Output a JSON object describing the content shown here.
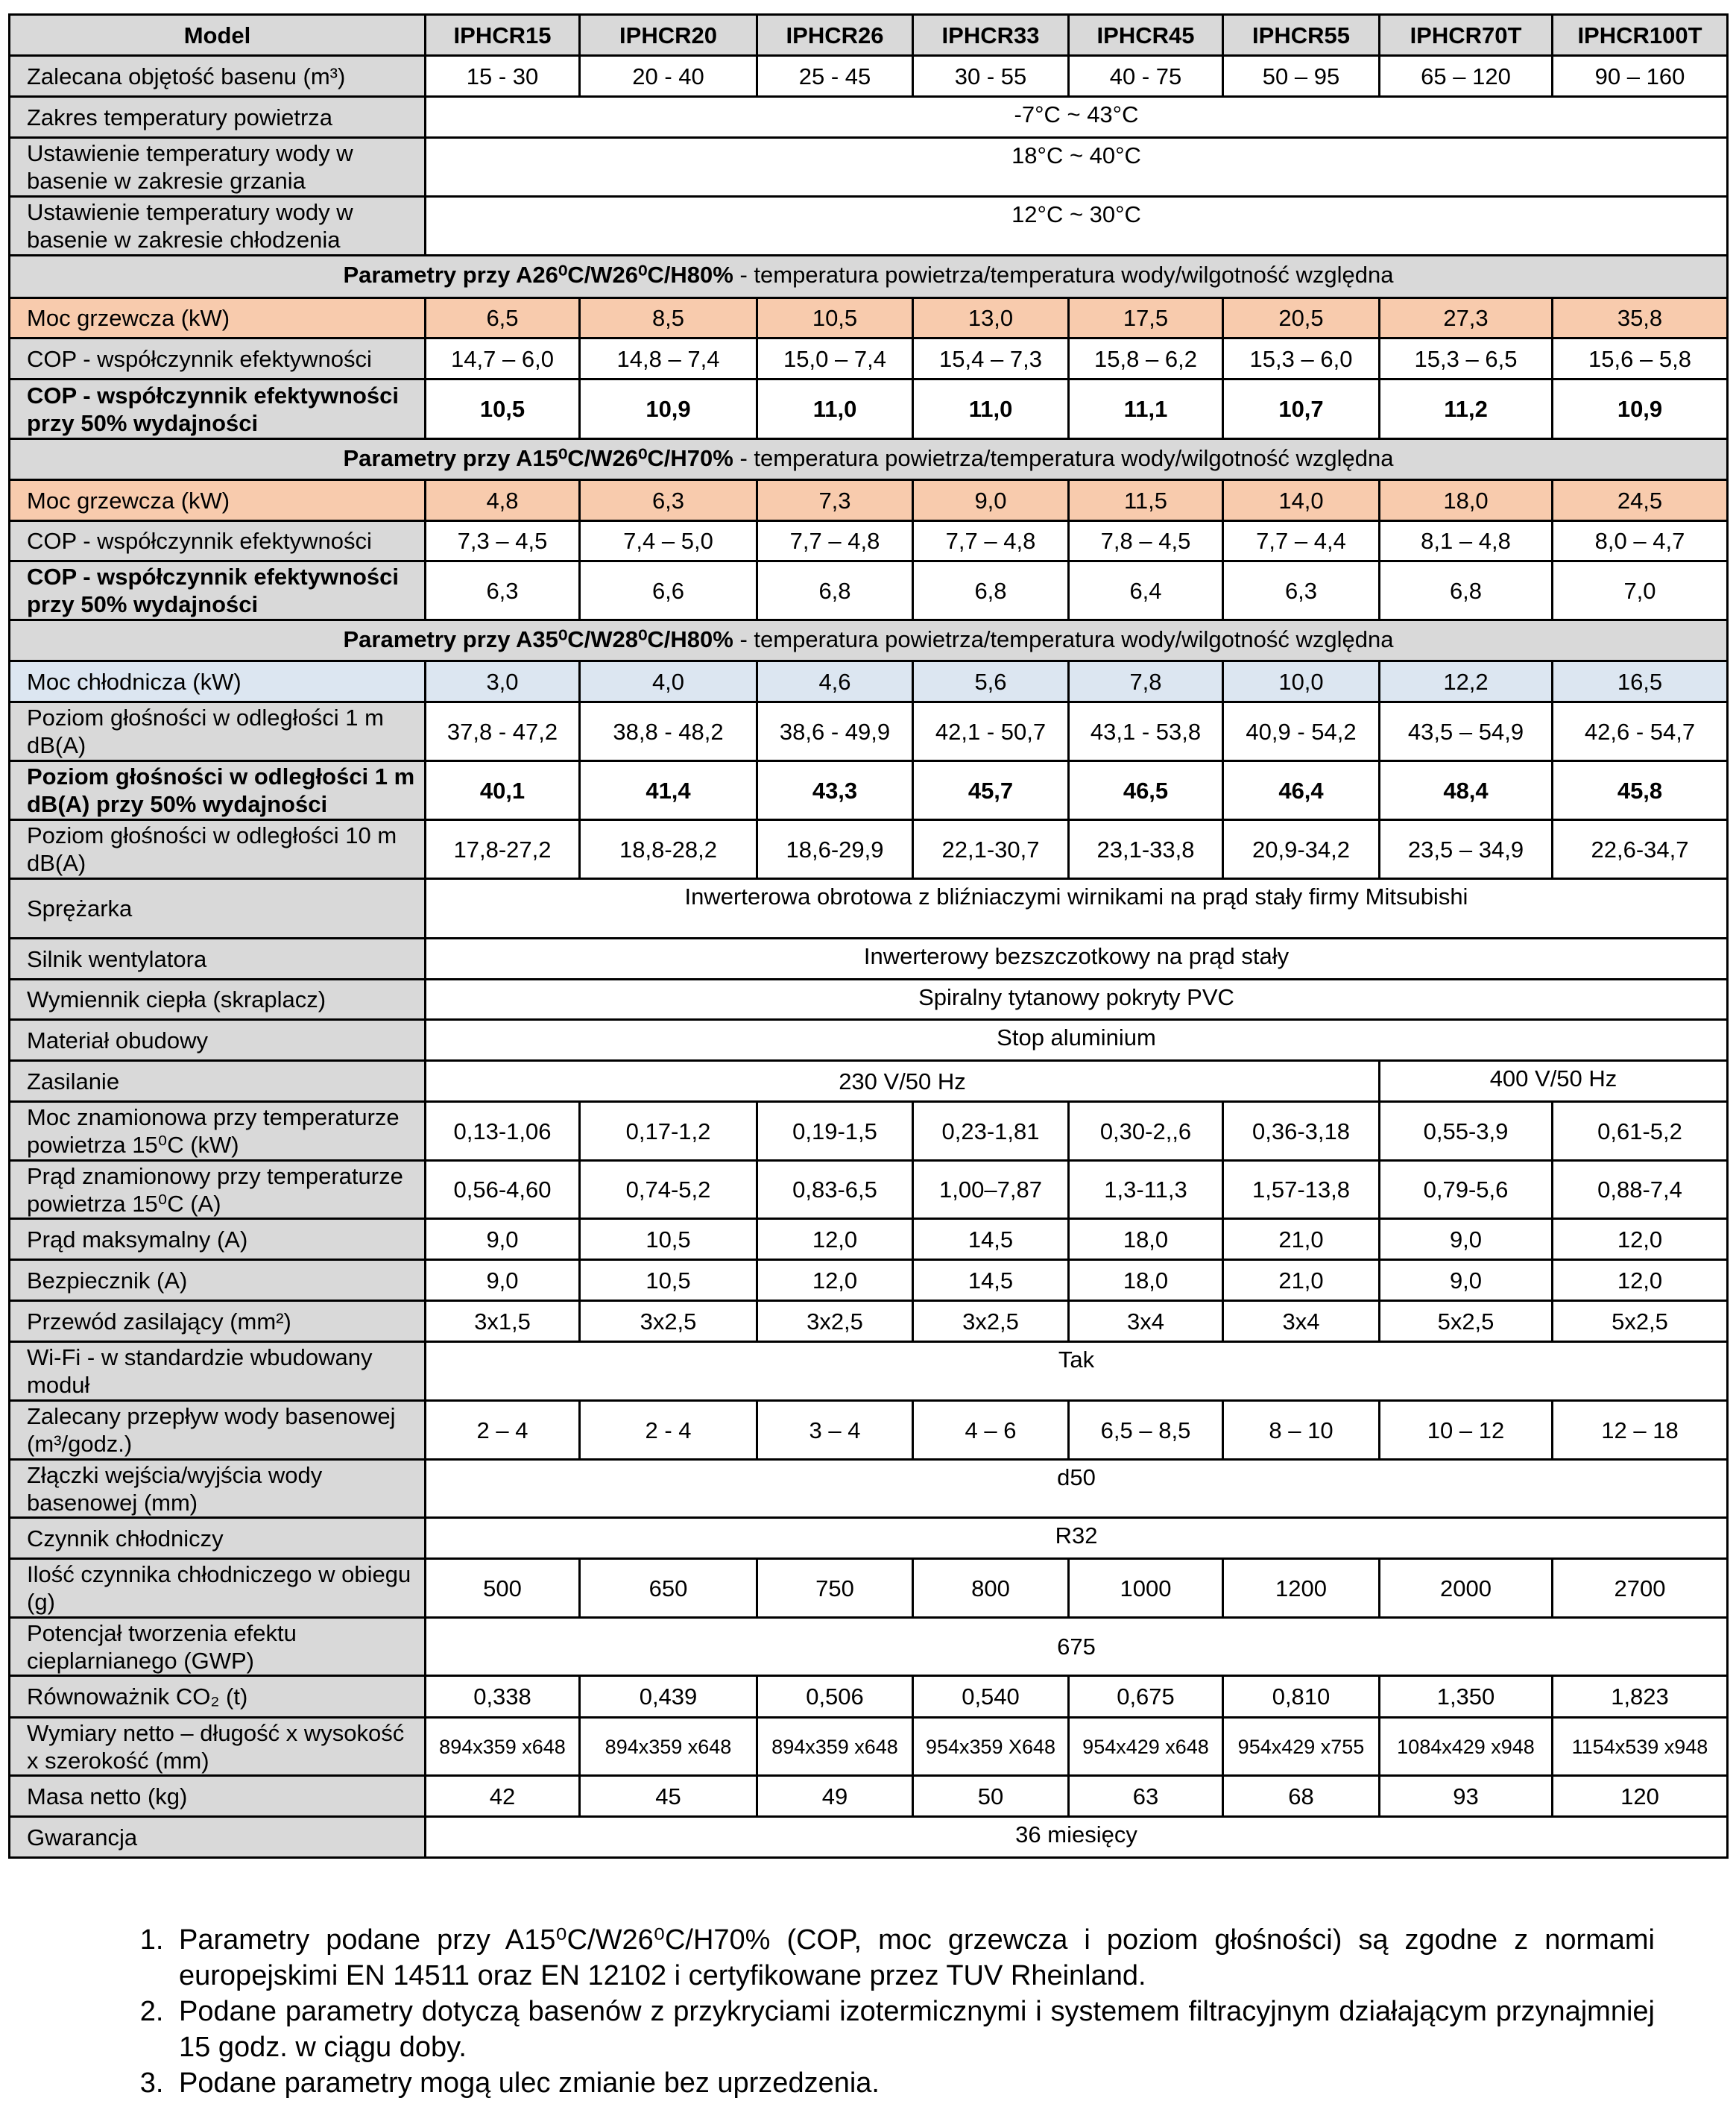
{
  "colors": {
    "header": "#d9d9d9",
    "heating": "#f8cbad",
    "cooling": "#dce6f1"
  },
  "header": {
    "label": "Model",
    "models": [
      "IPHCR15",
      "IPHCR20",
      "IPHCR26",
      "IPHCR33",
      "IPHCR45",
      "IPHCR55",
      "IPHCR70T",
      "IPHCR100T"
    ]
  },
  "rows": [
    {
      "label": "Zalecana objętość basenu (m³)",
      "h": 55,
      "cells": [
        "15 - 30",
        "20 - 40",
        "25 - 45",
        "30 - 55",
        "40 - 75",
        "50 – 95",
        "65 – 120",
        "90 – 160"
      ]
    },
    {
      "label": "Zakres temperatury powietrza",
      "h": 55,
      "span": "-7°C ~ 43°C"
    },
    {
      "label": "Ustawienie temperatury wody w basenie w zakresie grzania",
      "h": 79,
      "span": "18°C ~ 40°C"
    },
    {
      "label": "Ustawienie temperatury wody w basenie w zakresie chłodzenia",
      "h": 79,
      "span": "12°C ~ 30°C"
    },
    {
      "section_bold": "Parametry przy A26⁰C/W26⁰C/H80%",
      "section_text": " - temperatura powietrza/temperatura wody/wilgotność względna",
      "h": 57
    },
    {
      "label": "Moc grzewcza (kW)",
      "h": 54,
      "style": "orange",
      "cells": [
        "6,5",
        "8,5",
        "10,5",
        "13,0",
        "17,5",
        "20,5",
        "27,3",
        "35,8"
      ]
    },
    {
      "label": "COP - współczynnik efektywności",
      "h": 55,
      "cells": [
        "14,7 – 6,0",
        "14,8 – 7,4",
        "15,0 – 7,4",
        "15,4 – 7,3",
        "15,8 – 6,2",
        "15,3 – 6,0",
        "15,3 – 6,5",
        "15,6 – 5,8"
      ]
    },
    {
      "label": "COP - współczynnik efektywności przy 50% wydajności",
      "h": 80,
      "style": "bold",
      "cells": [
        "10,5",
        "10,9",
        "11,0",
        "11,0",
        "11,1",
        "10,7",
        "11,2",
        "10,9"
      ]
    },
    {
      "section_bold": "Parametry przy A15⁰C/W26⁰C/H70%",
      "section_text": " - temperatura powietrza/temperatura wody/wilgotność względna",
      "h": 55
    },
    {
      "label": "Moc grzewcza (kW)",
      "h": 55,
      "style": "orange",
      "cells": [
        "4,8",
        "6,3",
        "7,3",
        "9,0",
        "11,5",
        "14,0",
        "18,0",
        "24,5"
      ]
    },
    {
      "label": "COP - współczynnik efektywności",
      "h": 54,
      "cells": [
        "7,3 – 4,5",
        "7,4 – 5,0",
        "7,7 – 4,8",
        "7,7 – 4,8",
        "7,8 – 4,5",
        "7,7 – 4,4",
        "8,1 – 4,8",
        "8,0 – 4,7"
      ]
    },
    {
      "label": "COP - współczynnik efektywności przy 50% wydajności",
      "h": 79,
      "labelbold": true,
      "cells": [
        "6,3",
        "6,6",
        "6,8",
        "6,8",
        "6,4",
        "6,3",
        "6,8",
        "7,0"
      ]
    },
    {
      "section_bold": "Parametry przy A35⁰C/W28⁰C/H80%",
      "section_text": " - temperatura powietrza/temperatura wody/wilgotność względna",
      "h": 55
    },
    {
      "label": "Moc chłodnicza (kW)",
      "h": 55,
      "style": "blue",
      "cells": [
        "3,0",
        "4,0",
        "4,6",
        "5,6",
        "7,8",
        "10,0",
        "12,2",
        "16,5"
      ]
    },
    {
      "label": "Poziom głośności w odległości 1 m dB(A)",
      "h": 79,
      "cells": [
        "37,8 - 47,2",
        "38,8 - 48,2",
        "38,6 - 49,9",
        "42,1 - 50,7",
        "43,1 - 53,8",
        "40,9 - 54,2",
        "43,5 – 54,9",
        "42,6 - 54,7"
      ]
    },
    {
      "label": "Poziom głośności w odległości 1 m dB(A) przy 50% wydajności",
      "h": 79,
      "style": "bold",
      "cells": [
        "40,1",
        "41,4",
        "43,3",
        "45,7",
        "46,5",
        "46,4",
        "48,4",
        "45,8"
      ]
    },
    {
      "label": "Poziom głośności w odległości 10 m dB(A)",
      "h": 79,
      "cells": [
        "17,8-27,2",
        "18,8-28,2",
        "18,6-29,9",
        "22,1-30,7",
        "23,1-33,8",
        "20,9-34,2",
        "23,5 – 34,9",
        "22,6-34,7"
      ]
    },
    {
      "label": "Sprężarka",
      "h": 80,
      "span": "Inwerterowa obrotowa z bliźniaczymi wirnikami na prąd stały firmy Mitsubishi"
    },
    {
      "label": "Silnik wentylatora",
      "h": 55,
      "span": "Inwerterowy bezszczotkowy na prąd stały"
    },
    {
      "label": "Wymiennik ciepła (skraplacz)",
      "h": 54,
      "span": "Spiralny tytanowy pokryty PVC"
    },
    {
      "label": "Materiał obudowy",
      "h": 55,
      "span": "Stop aluminium"
    },
    {
      "label": "Zasilanie",
      "h": 55,
      "split": [
        "230 V/50 Hz",
        "400 V/50 Hz"
      ]
    },
    {
      "label": "Moc znamionowa przy temperaturze powietrza 15⁰C (kW)",
      "h": 79,
      "cells": [
        "0,13-1,06",
        "0,17-1,2",
        "0,19-1,5",
        "0,23-1,81",
        "0,30-2,,6",
        "0,36-3,18",
        "0,55-3,9",
        "0,61-5,2"
      ]
    },
    {
      "label": "Prąd znamionowy przy temperaturze powietrza 15⁰C (A)",
      "h": 78,
      "cells": [
        "0,56-4,60",
        "0,74-5,2",
        "0,83-6,5",
        "1,00–7,87",
        "1,3-11,3",
        "1,57-13,8",
        "0,79-5,6",
        "0,88-7,4"
      ]
    },
    {
      "label": "Prąd maksymalny (A)",
      "h": 55,
      "cells": [
        "9,0",
        "10,5",
        "12,0",
        "14,5",
        "18,0",
        "21,0",
        "9,0",
        "12,0"
      ]
    },
    {
      "label": "Bezpiecznik (A)",
      "h": 55,
      "cells": [
        "9,0",
        "10,5",
        "12,0",
        "14,5",
        "18,0",
        "21,0",
        "9,0",
        "12,0"
      ]
    },
    {
      "label": "Przewód zasilający (mm²)",
      "h": 55,
      "cells": [
        "3x1,5",
        "3x2,5",
        "3x2,5",
        "3x2,5",
        "3x4",
        "3x4",
        "5x2,5",
        "5x2,5"
      ]
    },
    {
      "label": "Wi-Fi - w standardzie wbudowany moduł",
      "h": 79,
      "span": "Tak"
    },
    {
      "label": "Zalecany przepływ wody basenowej (m³/godz.)",
      "h": 79,
      "cells": [
        "2 – 4",
        "2 - 4",
        "3 – 4",
        "4 – 6",
        "6,5 – 8,5",
        "8 – 10",
        "10 – 12",
        "12 – 18"
      ]
    },
    {
      "label": "Złączki wejścia/wyjścia wody basenowej (mm)",
      "h": 78,
      "span": "d50"
    },
    {
      "label": "Czynnik chłodniczy",
      "h": 55,
      "span": "R32"
    },
    {
      "label": "Ilość czynnika chłodniczego w obiegu (g)",
      "h": 79,
      "cells": [
        "500",
        "650",
        "750",
        "800",
        "1000",
        "1200",
        "2000",
        "2700"
      ]
    },
    {
      "label": "Potencjał tworzenia efektu cieplarnianego (GWP)",
      "h": 78,
      "spanmid": "675"
    },
    {
      "label": "Równoważnik CO₂ (t)",
      "h": 56,
      "cells": [
        "0,338",
        "0,439",
        "0,506",
        "0,540",
        "0,675",
        "0,810",
        "1,350",
        "1,823"
      ]
    },
    {
      "label": "Wymiary netto – długość x wysokość x szerokość (mm)",
      "h": 78,
      "small": true,
      "cells": [
        "894x359 x648",
        "894x359 x648",
        "894x359 x648",
        "954x359 X648",
        "954x429 x648",
        "954x429 x755",
        "1084x429 x948",
        "1154x539 x948"
      ]
    },
    {
      "label": "Masa netto (kg)",
      "h": 55,
      "cells": [
        "42",
        "45",
        "49",
        "50",
        "63",
        "68",
        "93",
        "120"
      ]
    },
    {
      "label": "Gwarancja",
      "h": 55,
      "span": "36 miesięcy"
    }
  ],
  "notes": [
    "Parametry podane przy A15⁰C/W26⁰C/H70% (COP, moc grzewcza i poziom głośności) są zgodne z normami europejskimi EN 14511 oraz EN 12102 i certyfikowane przez TUV Rheinland.",
    "Podane parametry dotyczą basenów z przykryciami izotermicznymi i systemem filtracyjnym działającym przynajmniej 15 godz. w ciągu doby.",
    "Podane parametry mogą ulec zmianie bez uprzedzenia."
  ]
}
